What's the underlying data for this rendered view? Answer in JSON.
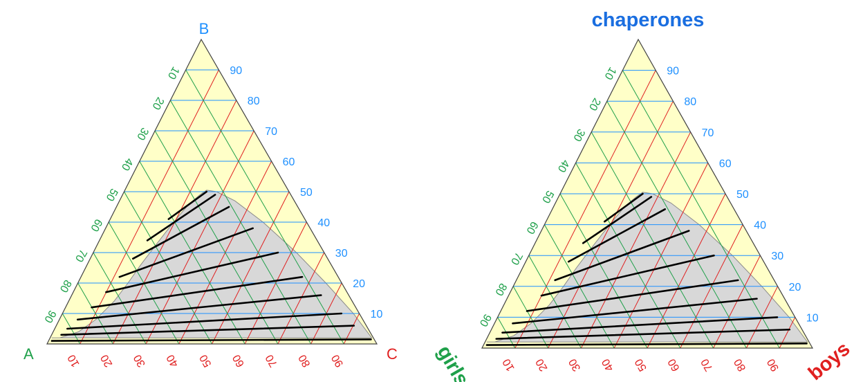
{
  "colors": {
    "fill": "#ffffc8",
    "region": "#d8d8d8",
    "outline": "#404040",
    "blue": "#1e90ff",
    "green": "#1fa04a",
    "red": "#e02020",
    "tie_line": "#000000",
    "bold_blue": "#1a6ee0"
  },
  "diagrams": [
    {
      "id": "left",
      "labels": {
        "top": "B",
        "left": "A",
        "right": "C"
      },
      "label_style": "plain",
      "ticks": {
        "blue": [
          "10",
          "20",
          "30",
          "40",
          "50",
          "60",
          "70",
          "80",
          "90"
        ],
        "green": [
          "10",
          "20",
          "30",
          "40",
          "50",
          "60",
          "70",
          "80",
          "90"
        ],
        "red": [
          "10",
          "20",
          "30",
          "40",
          "50",
          "60",
          "70",
          "80",
          "90"
        ]
      }
    },
    {
      "id": "right",
      "labels": {
        "top": "chaperones",
        "left": "girls",
        "right": "boys"
      },
      "label_style": "bold",
      "ticks": {
        "blue": [
          "10",
          "20",
          "30",
          "40",
          "50",
          "60",
          "70",
          "80",
          "90"
        ],
        "green": [
          "10",
          "20",
          "30",
          "40",
          "50",
          "60",
          "70",
          "80",
          "90"
        ],
        "red": [
          "10",
          "20",
          "30",
          "40",
          "50",
          "60",
          "70",
          "80",
          "90"
        ]
      }
    }
  ]
}
